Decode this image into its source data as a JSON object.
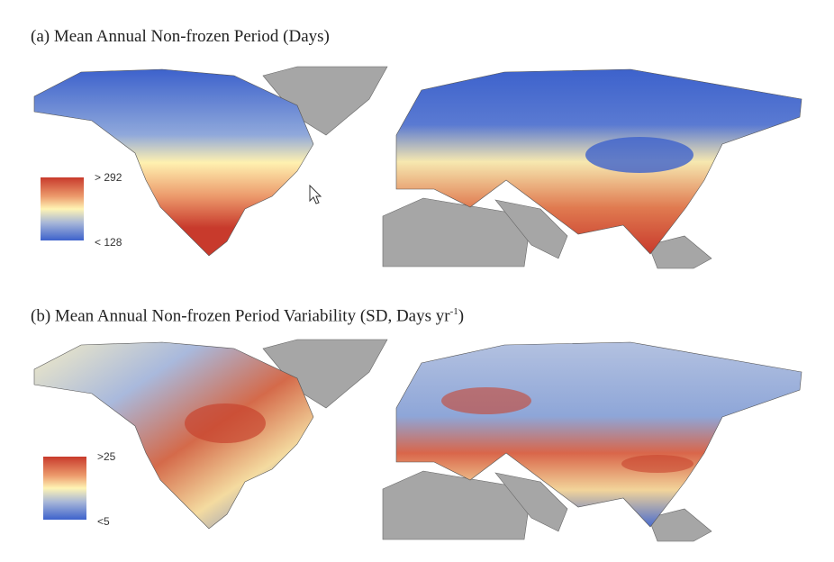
{
  "panel_a": {
    "title": "(a) Mean Annual Non-frozen Period (Days)",
    "legend": {
      "max_label": "> 292",
      "min_label": "< 128"
    }
  },
  "panel_b": {
    "title_main": "(b) Mean Annual Non-frozen Period Variability (SD, Days yr",
    "title_sup": "-1",
    "title_end": ")",
    "legend": {
      "max_label": ">25",
      "min_label": "<5"
    }
  },
  "colors": {
    "high": "#c83a2c",
    "mid": "#fff4b4",
    "low": "#3d62cc",
    "nodata": "#a6a6a6"
  }
}
